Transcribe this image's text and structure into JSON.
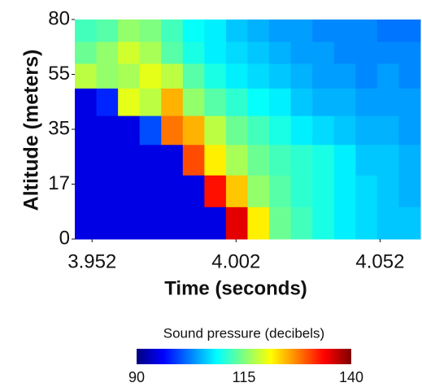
{
  "chart_data": {
    "type": "heatmap",
    "xlabel": "Time (seconds)",
    "ylabel": "Altitude (meters)",
    "x": [
      3.94975,
      3.95725,
      3.96475,
      3.97225,
      3.97975,
      3.98725,
      3.99475,
      4.00225,
      4.00975,
      4.01725,
      4.02475,
      4.03225,
      4.03975,
      4.04725,
      4.05475,
      4.06225
    ],
    "y": [
      5,
      15,
      25,
      35,
      45,
      55,
      65,
      75
    ],
    "values": [
      [
        95,
        95,
        95,
        95,
        95,
        95,
        95,
        135,
        122,
        114,
        112,
        110,
        108,
        107,
        106,
        106
      ],
      [
        95,
        95,
        95,
        95,
        95,
        95,
        133,
        124,
        116,
        113,
        111,
        110,
        108,
        107,
        106,
        105
      ],
      [
        95,
        95,
        95,
        95,
        95,
        130,
        122,
        117,
        114,
        112,
        111,
        110,
        108,
        106,
        106,
        105
      ],
      [
        95,
        95,
        95,
        100,
        128,
        125,
        118,
        114,
        112,
        110,
        108,
        107,
        106,
        105,
        105,
        104
      ],
      [
        95,
        98,
        120,
        118,
        125,
        116,
        113,
        111,
        109,
        108,
        106,
        105,
        105,
        104,
        104,
        104
      ],
      [
        118,
        116,
        117,
        120,
        118,
        113,
        110,
        108,
        107,
        106,
        105,
        104,
        104,
        103,
        104,
        103
      ],
      [
        114,
        116,
        119,
        117,
        113,
        110,
        108,
        107,
        106,
        105,
        104,
        104,
        103,
        103,
        103,
        103
      ],
      [
        112,
        113,
        116,
        115,
        112,
        109,
        108,
        106,
        105,
        104,
        104,
        103,
        103,
        103,
        102,
        102
      ]
    ],
    "xlim": [
      3.946,
      4.066
    ],
    "xticks": [
      3.952,
      4.002,
      4.052
    ],
    "ylim": [
      0,
      80
    ],
    "yticks": [
      0,
      17,
      35,
      55,
      80
    ],
    "colorbar": {
      "label": "Sound pressure (decibels)",
      "clim": [
        90,
        140
      ],
      "ticks": [
        90,
        115,
        140
      ],
      "colormap": [
        "#00007f",
        "#0000ff",
        "#007fff",
        "#00ffff",
        "#7fff7f",
        "#ffff00",
        "#ff7f00",
        "#ff0000",
        "#7f0000"
      ]
    }
  }
}
